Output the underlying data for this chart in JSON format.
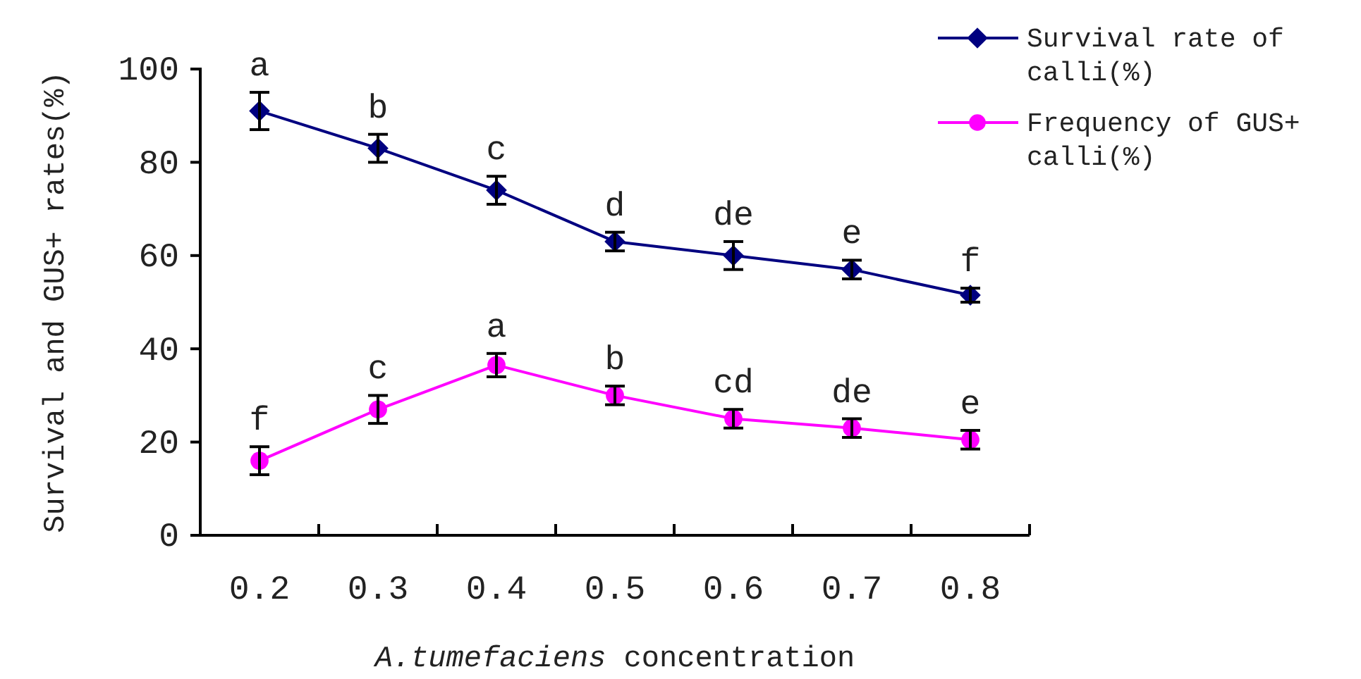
{
  "chart_data": {
    "type": "line",
    "xlabel": "A.tumefaciens concentration",
    "ylabel": "Survival and GUS+ rates(%)",
    "categories": [
      "0.2",
      "0.3",
      "0.4",
      "0.5",
      "0.6",
      "0.7",
      "0.8"
    ],
    "ylim": [
      0,
      100
    ],
    "yticks": [
      0,
      20,
      40,
      60,
      80,
      100
    ],
    "grid": false,
    "legend": "top right",
    "line_style": "solid",
    "series": [
      {
        "name": "Survival rate of calli(%)",
        "color": "#000080",
        "marker": "diamond",
        "values": [
          91,
          83,
          74,
          63,
          60,
          57,
          51.5
        ],
        "errors": [
          4,
          3,
          3,
          2,
          3,
          2,
          1.5
        ]
      },
      {
        "name": "Frequency of GUS+ calli(%)",
        "color": "#ff00ff",
        "marker": "circle",
        "values": [
          16,
          27,
          36.5,
          30,
          25,
          23,
          20.5
        ],
        "errors": [
          3,
          3,
          2.5,
          2,
          2,
          2,
          2
        ]
      }
    ],
    "annotations": [
      {
        "text": "a",
        "x": "0.2",
        "y": 91
      },
      {
        "text": "b",
        "x": "0.3",
        "y": 83
      },
      {
        "text": "c",
        "x": "0.4",
        "y": 74
      },
      {
        "text": "d",
        "x": "0.5",
        "y": 63
      },
      {
        "text": "de",
        "x": "0.6",
        "y": 60
      },
      {
        "text": "e",
        "x": "0.7",
        "y": 57
      },
      {
        "text": "f",
        "x": "0.8",
        "y": 51.5
      },
      {
        "text": "f",
        "x": "0.2",
        "y": 16
      },
      {
        "text": "c",
        "x": "0.3",
        "y": 27
      },
      {
        "text": "a",
        "x": "0.4",
        "y": 36.5
      },
      {
        "text": "b",
        "x": "0.5",
        "y": 30
      },
      {
        "text": "cd",
        "x": "0.6",
        "y": 25
      },
      {
        "text": "de",
        "x": "0.7",
        "y": 23
      },
      {
        "text": "e",
        "x": "0.8",
        "y": 20.5
      }
    ]
  }
}
